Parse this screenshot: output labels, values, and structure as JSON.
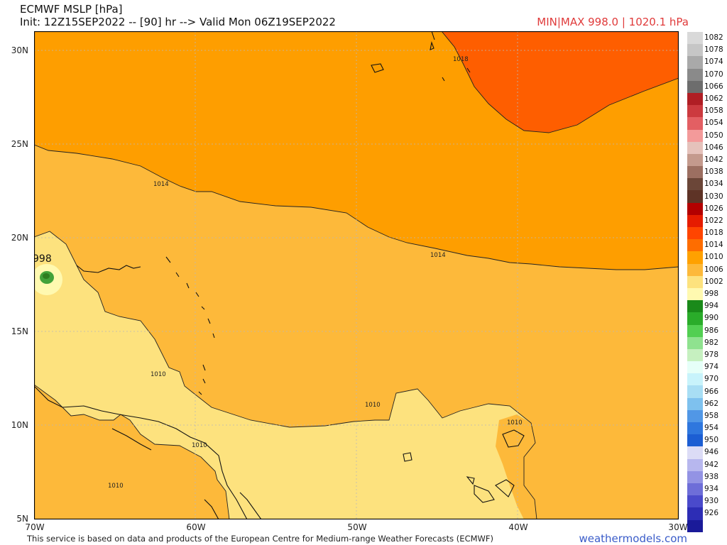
{
  "header": {
    "title": "ECMWF MSLP [hPa]",
    "init": "Init: 12Z15SEP2022 -- [90] hr --> Valid Mon 06Z19SEP2022",
    "minmax": "MIN|MAX 998.0 | 1020.1 hPa"
  },
  "map": {
    "lon_range": [
      -70,
      -30
    ],
    "lat_range": [
      5,
      31
    ],
    "lat_labels": [
      "30N",
      "25N",
      "20N",
      "15N",
      "10N",
      "5N"
    ],
    "lon_labels": [
      "70W",
      "60W",
      "50W",
      "40W",
      "30W"
    ],
    "isobar_labels": [
      "1018",
      "1014",
      "1014",
      "1010",
      "1010",
      "1010",
      "1010",
      "1010"
    ],
    "low_center_label": "998",
    "fill_colors": {
      "p1018": "#fe5e00",
      "p1014": "#fe9e00",
      "p1010": "#fdb93a",
      "p1006": "#fde27e",
      "p1002": "#fff9b0",
      "p998": "#42a23a",
      "p994": "#2e7d1f"
    }
  },
  "legend": [
    {
      "label": "1082",
      "color": "#d9d9d9"
    },
    {
      "label": "1078",
      "color": "#c6c6c6"
    },
    {
      "label": "1074",
      "color": "#a9a9a9"
    },
    {
      "label": "1070",
      "color": "#8a8a8a"
    },
    {
      "label": "1066",
      "color": "#6d6d6d"
    },
    {
      "label": "1062",
      "color": "#b01e24"
    },
    {
      "label": "1058",
      "color": "#cc3a3f"
    },
    {
      "label": "1054",
      "color": "#e35f63"
    },
    {
      "label": "1050",
      "color": "#f39a9a"
    },
    {
      "label": "1046",
      "color": "#e5c2bb"
    },
    {
      "label": "1042",
      "color": "#c49a8d"
    },
    {
      "label": "1038",
      "color": "#9c6f61"
    },
    {
      "label": "1034",
      "color": "#6b4638"
    },
    {
      "label": "1030",
      "color": "#5e3326"
    },
    {
      "label": "1026",
      "color": "#b30000"
    },
    {
      "label": "1022",
      "color": "#e61c00"
    },
    {
      "label": "1018",
      "color": "#ff4500"
    },
    {
      "label": "1014",
      "color": "#fe6d00"
    },
    {
      "label": "1010",
      "color": "#ffa100"
    },
    {
      "label": "1006",
      "color": "#fdb93a"
    },
    {
      "label": "1002",
      "color": "#fde27e"
    },
    {
      "label": "998",
      "color": "#fff9b0"
    },
    {
      "label": "994",
      "color": "#1a8a1a"
    },
    {
      "label": "990",
      "color": "#2aac2a"
    },
    {
      "label": "986",
      "color": "#52cf52"
    },
    {
      "label": "982",
      "color": "#8fe28f"
    },
    {
      "label": "978",
      "color": "#c6f0c0"
    },
    {
      "label": "974",
      "color": "#e6fff8"
    },
    {
      "label": "970",
      "color": "#c8f3fb"
    },
    {
      "label": "966",
      "color": "#a8def4"
    },
    {
      "label": "962",
      "color": "#7ec1ee"
    },
    {
      "label": "958",
      "color": "#5197e6"
    },
    {
      "label": "954",
      "color": "#2f77de"
    },
    {
      "label": "950",
      "color": "#1c5ed3"
    },
    {
      "label": "946",
      "color": "#dcdcf6"
    },
    {
      "label": "942",
      "color": "#b7b7ee"
    },
    {
      "label": "938",
      "color": "#9393e4"
    },
    {
      "label": "934",
      "color": "#6e6ed8"
    },
    {
      "label": "930",
      "color": "#4a4acb"
    },
    {
      "label": "926",
      "color": "#2d2db5"
    },
    {
      "label": "",
      "color": "#1a1a99"
    }
  ],
  "footer": {
    "credit": "This service is based on data and products of the European Centre for Medium-range Weather Forecasts (ECMWF)",
    "brand": "weathermodels.com"
  }
}
